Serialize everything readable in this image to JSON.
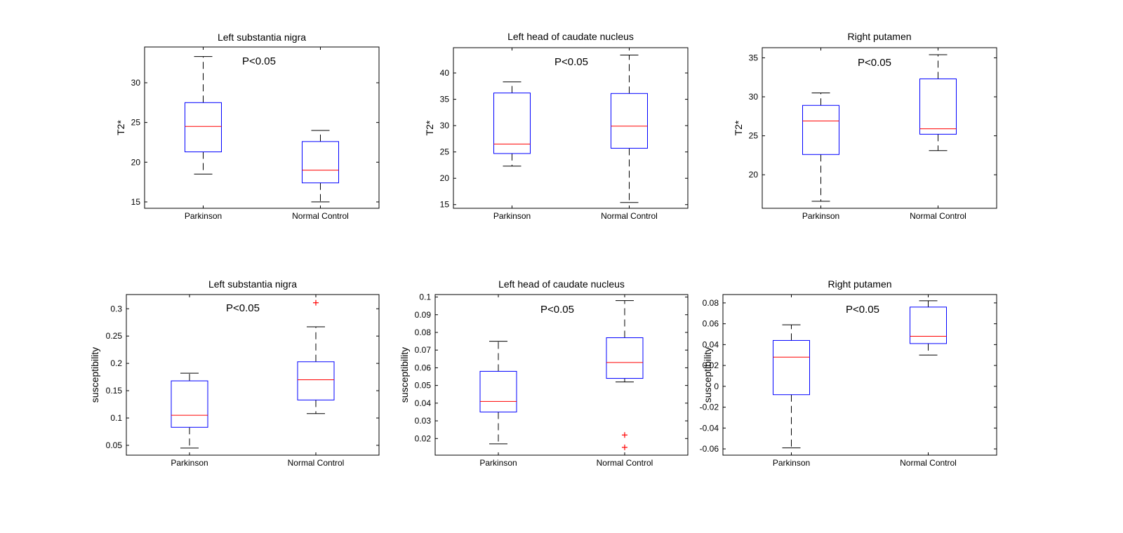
{
  "chart_data": [
    {
      "type": "boxplot",
      "title": "Left substantia nigra",
      "ylabel": "T2*",
      "annotation": "P<0.05",
      "categories": [
        "Parkinson",
        "Normal Control"
      ],
      "ylim": [
        14.2,
        34.5
      ],
      "yticks": [
        15,
        20,
        25,
        30
      ],
      "ytick_labels": [
        "15",
        "20",
        "25",
        "30"
      ],
      "boxes": [
        {
          "whisker_low": 18.5,
          "q1": 21.3,
          "median": 24.5,
          "q3": 27.5,
          "whisker_high": 33.3,
          "outliers": []
        },
        {
          "whisker_low": 15.0,
          "q1": 17.4,
          "median": 19.0,
          "q3": 22.6,
          "whisker_high": 24.0,
          "outliers": []
        }
      ]
    },
    {
      "type": "boxplot",
      "title": "Left head of caudate nucleus",
      "ylabel": "T2*",
      "annotation": "P<0.05",
      "categories": [
        "Parkinson",
        "Normal Control"
      ],
      "ylim": [
        14.3,
        44.8
      ],
      "yticks": [
        15,
        20,
        25,
        30,
        35,
        40
      ],
      "ytick_labels": [
        "15",
        "20",
        "25",
        "30",
        "35",
        "40"
      ],
      "boxes": [
        {
          "whisker_low": 22.3,
          "q1": 24.7,
          "median": 26.5,
          "q3": 36.2,
          "whisker_high": 38.3,
          "outliers": []
        },
        {
          "whisker_low": 15.4,
          "q1": 25.7,
          "median": 29.9,
          "q3": 36.1,
          "whisker_high": 43.4,
          "outliers": []
        }
      ]
    },
    {
      "type": "boxplot",
      "title": "Right putamen",
      "ylabel": "T2*",
      "annotation": "P<0.05",
      "categories": [
        "Parkinson",
        "Normal Control"
      ],
      "ylim": [
        15.7,
        36.3
      ],
      "yticks": [
        20,
        25,
        30,
        35
      ],
      "ytick_labels": [
        "20",
        "25",
        "30",
        "35"
      ],
      "boxes": [
        {
          "whisker_low": 16.6,
          "q1": 22.6,
          "median": 26.9,
          "q3": 28.9,
          "whisker_high": 30.5,
          "outliers": []
        },
        {
          "whisker_low": 23.1,
          "q1": 25.2,
          "median": 25.9,
          "q3": 32.3,
          "whisker_high": 35.4,
          "outliers": []
        }
      ]
    },
    {
      "type": "boxplot",
      "title": "Left substantia nigra",
      "ylabel": "susceptibility",
      "annotation": "P<0.05",
      "categories": [
        "Parkinson",
        "Normal Control"
      ],
      "ylim": [
        0.032,
        0.326
      ],
      "yticks": [
        0.05,
        0.1,
        0.15,
        0.2,
        0.25,
        0.3
      ],
      "ytick_labels": [
        "0.05",
        "0.1",
        "0.15",
        "0.2",
        "0.25",
        "0.3"
      ],
      "boxes": [
        {
          "whisker_low": 0.045,
          "q1": 0.083,
          "median": 0.105,
          "q3": 0.168,
          "whisker_high": 0.182,
          "outliers": []
        },
        {
          "whisker_low": 0.108,
          "q1": 0.133,
          "median": 0.17,
          "q3": 0.203,
          "whisker_high": 0.267,
          "outliers": [
            0.311
          ]
        }
      ]
    },
    {
      "type": "boxplot",
      "title": "Left head of caudate nucleus",
      "ylabel": "susceptibility",
      "annotation": "P<0.05",
      "categories": [
        "Parkinson",
        "Normal Control"
      ],
      "ylim": [
        0.0106,
        0.1014
      ],
      "yticks": [
        0.02,
        0.03,
        0.04,
        0.05,
        0.06,
        0.07,
        0.08,
        0.09,
        0.1
      ],
      "ytick_labels": [
        "0.02",
        "0.03",
        "0.04",
        "0.05",
        "0.06",
        "0.07",
        "0.08",
        "0.09",
        "0.1"
      ],
      "boxes": [
        {
          "whisker_low": 0.017,
          "q1": 0.035,
          "median": 0.041,
          "q3": 0.058,
          "whisker_high": 0.075,
          "outliers": []
        },
        {
          "whisker_low": 0.052,
          "q1": 0.054,
          "median": 0.063,
          "q3": 0.077,
          "whisker_high": 0.098,
          "outliers": [
            0.022,
            0.015
          ]
        }
      ]
    },
    {
      "type": "boxplot",
      "title": "Right putamen",
      "ylabel": "susceptibility",
      "annotation": "P<0.05",
      "categories": [
        "Parkinson",
        "Normal Control"
      ],
      "ylim": [
        -0.066,
        0.088
      ],
      "yticks": [
        -0.06,
        -0.04,
        -0.02,
        0,
        0.02,
        0.04,
        0.06,
        0.08
      ],
      "ytick_labels": [
        "-0.06",
        "-0.04",
        "-0.02",
        "0",
        "0.02",
        "0.04",
        "0.06",
        "0.08"
      ],
      "boxes": [
        {
          "whisker_low": -0.059,
          "q1": -0.008,
          "median": 0.028,
          "q3": 0.044,
          "whisker_high": 0.059,
          "outliers": []
        },
        {
          "whisker_low": 0.03,
          "q1": 0.041,
          "median": 0.048,
          "q3": 0.076,
          "whisker_high": 0.082,
          "outliers": []
        }
      ]
    }
  ],
  "colors": {
    "box": "#0000ff",
    "median": "#ff0000",
    "whisker": "#000000",
    "outlier": "#ff0000",
    "axes": "#000000"
  }
}
